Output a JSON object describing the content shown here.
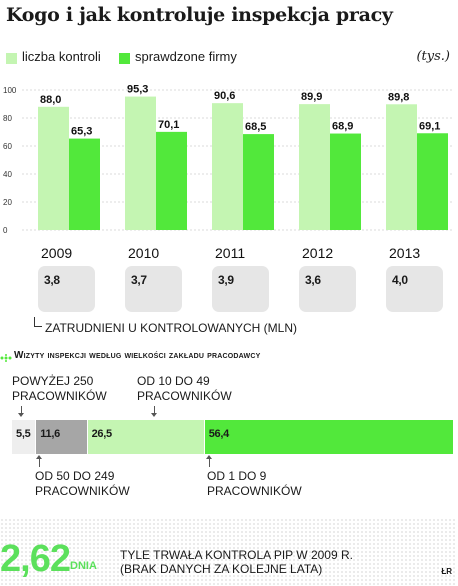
{
  "title": "Kogo i jak kontroluje inspekcja pracy",
  "unit": "(tys.)",
  "colors": {
    "light_green": "#c4f5b2",
    "green": "#52e83b",
    "grey_box": "#e6e6e6",
    "dark_grey": "#a6a6a6",
    "pale_grey": "#eeeeee"
  },
  "chart_data": [
    {
      "type": "bar",
      "categories": [
        "2009",
        "2010",
        "2011",
        "2012",
        "2013"
      ],
      "series": [
        {
          "name": "liczba kontroli",
          "values": [
            88.0,
            95.3,
            90.6,
            89.9,
            89.8
          ],
          "labels": [
            "88,0",
            "95,3",
            "90,6",
            "89,9",
            "89,8"
          ],
          "color": "#c4f5b2"
        },
        {
          "name": "sprawdzone firmy",
          "values": [
            65.3,
            70.1,
            68.5,
            68.9,
            69.1
          ],
          "labels": [
            "65,3",
            "70,1",
            "68,5",
            "68,9",
            "69,1"
          ],
          "color": "#52e83b"
        }
      ],
      "yticks": [
        "0",
        "20",
        "40",
        "60",
        "80",
        "100"
      ],
      "ylim": [
        0,
        100
      ],
      "grid": true,
      "legend": "top-left"
    },
    {
      "type": "bar",
      "categories": [
        "2009",
        "2010",
        "2011",
        "2012",
        "2013"
      ],
      "values": [
        3.8,
        3.7,
        3.9,
        3.6,
        4.0
      ],
      "labels": [
        "3,8",
        "3,7",
        "3,9",
        "3,6",
        "4,0"
      ],
      "caption": "ZATRUDNIENI U KONTROLOWANYCH (MLN)"
    },
    {
      "type": "bar",
      "orientation": "stacked-horizontal",
      "title": "Wizyty inspekcji według wielkości zakładu pracodawcy",
      "segments": [
        {
          "name": "POWYŻEJ 250 PRACOWNIKÓW",
          "value": 5.5,
          "label": "5,5",
          "color": "#eeeeee"
        },
        {
          "name": "OD 50 DO 249 PRACOWNIKÓW",
          "value": 11.6,
          "label": "11,6",
          "color": "#a6a6a6"
        },
        {
          "name": "OD 10 DO 49 PRACOWNIKÓW",
          "value": 26.5,
          "label": "26,5",
          "color": "#c4f5b2"
        },
        {
          "name": "OD 1 DO 9 PRACOWNIKÓW",
          "value": 56.4,
          "label": "56,4",
          "color": "#52e83b"
        }
      ]
    }
  ],
  "annotations": {
    "over250_line1": "POWYŻEJ 250",
    "over250_line2": "PRACOWNIKÓW",
    "from10_line1": "OD 10 DO 49",
    "from10_line2": "PRACOWNIKÓW",
    "from50_line1": "OD 50 DO 249",
    "from50_line2": "PRACOWNIKÓW",
    "from1_line1": "OD 1 DO 9",
    "from1_line2": "PRACOWNIKÓW"
  },
  "footer": {
    "big_number": "2,62",
    "big_unit": "DNIA",
    "text_line1": "TYLE TRWAŁA KONTROLA PIP W 2009 R.",
    "text_line2": "(BRAK DANYCH ZA KOLEJNE LATA)",
    "credit": "ŁR"
  }
}
